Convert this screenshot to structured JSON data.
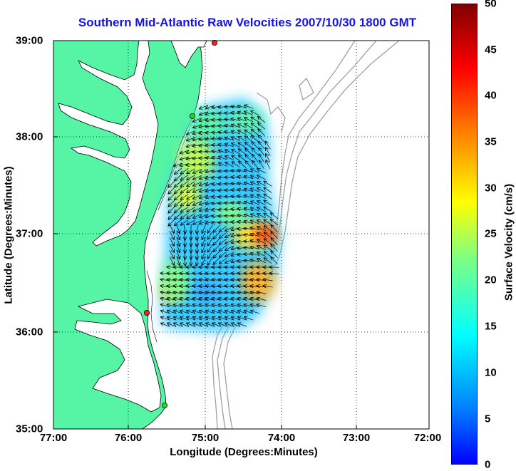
{
  "title": "Southern Mid-Atlantic Raw Velocities 2007/10/30 1800 GMT",
  "x_axis": {
    "label": "Longitude (Degrees:Minutes)",
    "ticks": [
      "77:00",
      "76:00",
      "75:00",
      "74:00",
      "73:00",
      "72:00"
    ]
  },
  "y_axis": {
    "label": "Latitude (Degrees:Minutes)",
    "ticks": [
      "39:00",
      "38:00",
      "37:00",
      "36:00",
      "35:00"
    ]
  },
  "colorbar": {
    "label": "Surface Velocity (cm/s)",
    "ticks": [
      "50",
      "45",
      "40",
      "35",
      "30",
      "25",
      "20",
      "15",
      "10",
      "5",
      "0"
    ],
    "range": [
      0,
      50
    ]
  },
  "colors": {
    "title": "#1414e6",
    "land": "#55f5a5",
    "bathymetry": "#a0a0a0",
    "station_red": "#ff2020",
    "station_green": "#20dd20"
  },
  "stations": [
    {
      "color": "red",
      "lon": "-74.87",
      "lat": "38.96"
    },
    {
      "color": "green",
      "lon": "-75.15",
      "lat": "38.16"
    },
    {
      "color": "red",
      "lon": "-75.67",
      "lat": "36.19"
    },
    {
      "color": "green",
      "lon": "-75.47",
      "lat": "35.21"
    }
  ],
  "grid": true
}
